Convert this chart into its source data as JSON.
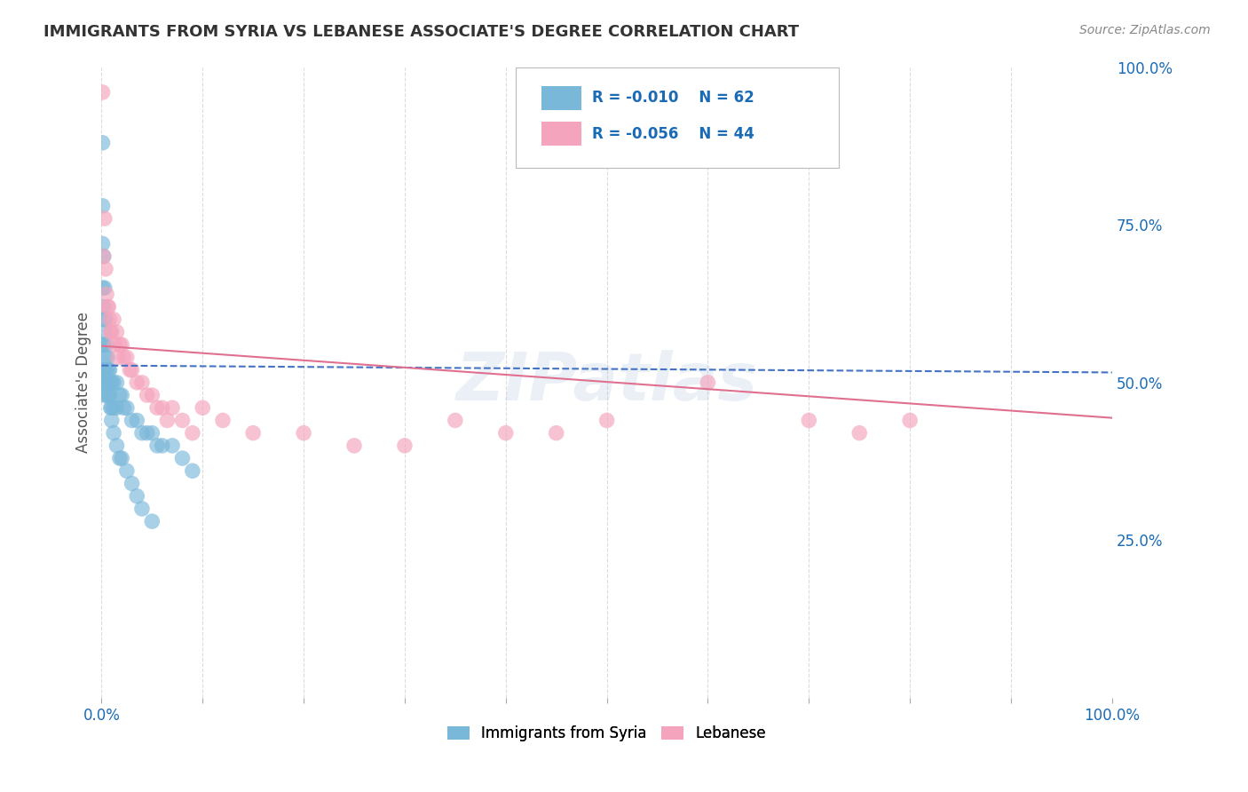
{
  "title": "IMMIGRANTS FROM SYRIA VS LEBANESE ASSOCIATE'S DEGREE CORRELATION CHART",
  "source": "Source: ZipAtlas.com",
  "ylabel": "Associate's Degree",
  "legend_labels": [
    "Immigrants from Syria",
    "Lebanese"
  ],
  "blue_color": "#7ab8d9",
  "pink_color": "#f4a4bc",
  "blue_line_color": "#4472c4",
  "pink_line_color": "#e07090",
  "legend_r_blue": "R = -0.010",
  "legend_n_blue": "N = 62",
  "legend_r_pink": "R = -0.056",
  "legend_n_pink": "N = 44",
  "xlim": [
    0.0,
    1.0
  ],
  "ylim": [
    0.0,
    1.0
  ],
  "ytick_right_labels": [
    "25.0%",
    "50.0%",
    "75.0%",
    "100.0%"
  ],
  "ytick_right_values": [
    0.25,
    0.5,
    0.75,
    1.0
  ],
  "watermark": "ZIPatlas",
  "blue_scatter_x": [
    0.001,
    0.001,
    0.001,
    0.001,
    0.001,
    0.001,
    0.001,
    0.001,
    0.002,
    0.002,
    0.002,
    0.002,
    0.002,
    0.002,
    0.003,
    0.003,
    0.003,
    0.003,
    0.004,
    0.004,
    0.004,
    0.005,
    0.005,
    0.005,
    0.006,
    0.006,
    0.007,
    0.007,
    0.008,
    0.008,
    0.009,
    0.009,
    0.01,
    0.01,
    0.012,
    0.012,
    0.015,
    0.015,
    0.018,
    0.02,
    0.022,
    0.025,
    0.03,
    0.035,
    0.04,
    0.045,
    0.05,
    0.055,
    0.06,
    0.07,
    0.08,
    0.09,
    0.01,
    0.012,
    0.015,
    0.018,
    0.02,
    0.025,
    0.03,
    0.035,
    0.04,
    0.05
  ],
  "blue_scatter_y": [
    0.88,
    0.78,
    0.72,
    0.65,
    0.6,
    0.56,
    0.52,
    0.5,
    0.7,
    0.62,
    0.56,
    0.52,
    0.5,
    0.48,
    0.65,
    0.58,
    0.52,
    0.5,
    0.6,
    0.54,
    0.5,
    0.56,
    0.52,
    0.48,
    0.54,
    0.5,
    0.52,
    0.48,
    0.52,
    0.48,
    0.5,
    0.46,
    0.5,
    0.46,
    0.5,
    0.46,
    0.5,
    0.46,
    0.48,
    0.48,
    0.46,
    0.46,
    0.44,
    0.44,
    0.42,
    0.42,
    0.42,
    0.4,
    0.4,
    0.4,
    0.38,
    0.36,
    0.44,
    0.42,
    0.4,
    0.38,
    0.38,
    0.36,
    0.34,
    0.32,
    0.3,
    0.28
  ],
  "pink_scatter_x": [
    0.001,
    0.002,
    0.003,
    0.004,
    0.005,
    0.007,
    0.008,
    0.01,
    0.012,
    0.015,
    0.018,
    0.02,
    0.022,
    0.025,
    0.028,
    0.03,
    0.035,
    0.04,
    0.05,
    0.06,
    0.07,
    0.08,
    0.1,
    0.12,
    0.15,
    0.2,
    0.25,
    0.3,
    0.35,
    0.4,
    0.5,
    0.6,
    0.7,
    0.75,
    0.8,
    0.006,
    0.009,
    0.013,
    0.016,
    0.045,
    0.055,
    0.065,
    0.09,
    0.45
  ],
  "pink_scatter_y": [
    0.96,
    0.7,
    0.76,
    0.68,
    0.64,
    0.62,
    0.6,
    0.58,
    0.6,
    0.58,
    0.56,
    0.56,
    0.54,
    0.54,
    0.52,
    0.52,
    0.5,
    0.5,
    0.48,
    0.46,
    0.46,
    0.44,
    0.46,
    0.44,
    0.42,
    0.42,
    0.4,
    0.4,
    0.44,
    0.42,
    0.44,
    0.5,
    0.44,
    0.42,
    0.44,
    0.62,
    0.58,
    0.56,
    0.54,
    0.48,
    0.46,
    0.44,
    0.42,
    0.42
  ],
  "blue_trend_x": [
    0.0,
    1.0
  ],
  "blue_trend_y": [
    0.527,
    0.516
  ],
  "pink_trend_x": [
    0.0,
    1.0
  ],
  "pink_trend_y": [
    0.558,
    0.444
  ],
  "background_color": "#ffffff",
  "grid_color": "#cccccc",
  "title_color": "#333333",
  "source_color": "#888888",
  "legend_text_color": "#1a6bb5",
  "xtick_positions": [
    0.0,
    0.1,
    0.2,
    0.3,
    0.4,
    0.5,
    0.6,
    0.7,
    0.8,
    0.9,
    1.0
  ]
}
